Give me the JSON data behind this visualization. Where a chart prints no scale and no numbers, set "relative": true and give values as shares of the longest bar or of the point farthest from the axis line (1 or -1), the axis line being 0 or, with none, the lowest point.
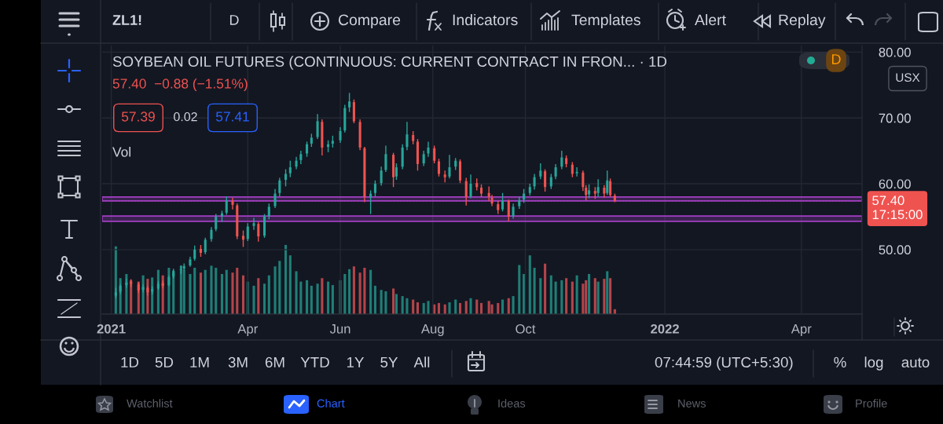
{
  "chart_data": [
    {
      "type": "candlestick",
      "title": "SOYBEAN OIL FUTURES (CONTINUOUS: CURRENT CONTRACT IN FRON... · 1D",
      "subtitle": "57.40  −0.88 (−1.51%)",
      "x": [
        "2021-01-04",
        "2021-01-07",
        "2021-01-11",
        "2021-01-14",
        "2021-01-19",
        "2021-01-22",
        "2021-01-25",
        "2021-01-28",
        "2021-02-01",
        "2021-02-04",
        "2021-02-08",
        "2021-02-11",
        "2021-02-16",
        "2021-02-18",
        "2021-02-22",
        "2021-02-25",
        "2021-03-01",
        "2021-03-04",
        "2021-03-08",
        "2021-03-11",
        "2021-03-15",
        "2021-03-18",
        "2021-03-22",
        "2021-03-25",
        "2021-03-29",
        "2021-04-01",
        "2021-04-05",
        "2021-04-08",
        "2021-04-12",
        "2021-04-15",
        "2021-04-19",
        "2021-04-22",
        "2021-04-26",
        "2021-04-29",
        "2021-05-03",
        "2021-05-06",
        "2021-05-10",
        "2021-05-13",
        "2021-05-17",
        "2021-05-20",
        "2021-05-24",
        "2021-05-27",
        "2021-06-01",
        "2021-06-04",
        "2021-06-07",
        "2021-06-10",
        "2021-06-14",
        "2021-06-17",
        "2021-06-21",
        "2021-06-24",
        "2021-06-28",
        "2021-07-01",
        "2021-07-06",
        "2021-07-08",
        "2021-07-12",
        "2021-07-15",
        "2021-07-19",
        "2021-07-22",
        "2021-07-26",
        "2021-07-29",
        "2021-08-02",
        "2021-08-05",
        "2021-08-09",
        "2021-08-12",
        "2021-08-16",
        "2021-08-19",
        "2021-08-23",
        "2021-08-26",
        "2021-08-30",
        "2021-09-02",
        "2021-09-07",
        "2021-09-09",
        "2021-09-13",
        "2021-09-16",
        "2021-09-20",
        "2021-09-23",
        "2021-09-27",
        "2021-09-30",
        "2021-10-04",
        "2021-10-07",
        "2021-10-11",
        "2021-10-14",
        "2021-10-18",
        "2021-10-21",
        "2021-10-25",
        "2021-10-28",
        "2021-11-01",
        "2021-11-04",
        "2021-11-08",
        "2021-11-10",
        "2021-11-12",
        "2021-11-16",
        "2021-11-18",
        "2021-11-22",
        "2021-11-24",
        "2021-11-26",
        "2021-11-29"
      ],
      "ohlc": [
        [
          43.0,
          44.2,
          42.6,
          43.5
        ],
        [
          43.6,
          44.8,
          43.2,
          44.5
        ],
        [
          44.6,
          45.6,
          44.2,
          45.0
        ],
        [
          45.1,
          45.5,
          44.3,
          44.8
        ],
        [
          44.7,
          45.0,
          43.4,
          43.8
        ],
        [
          43.9,
          44.7,
          43.5,
          44.3
        ],
        [
          44.2,
          44.5,
          43.0,
          43.5
        ],
        [
          43.6,
          44.4,
          43.2,
          44.0
        ],
        [
          44.1,
          45.2,
          43.9,
          44.8
        ],
        [
          44.9,
          45.3,
          44.1,
          44.5
        ],
        [
          44.6,
          46.1,
          44.4,
          45.8
        ],
        [
          45.9,
          47.1,
          45.6,
          46.8
        ],
        [
          46.9,
          47.6,
          46.3,
          47.0
        ],
        [
          47.1,
          47.9,
          46.8,
          47.5
        ],
        [
          47.6,
          48.9,
          47.4,
          48.5
        ],
        [
          48.6,
          50.6,
          48.3,
          50.0
        ],
        [
          50.1,
          50.7,
          48.9,
          49.5
        ],
        [
          49.6,
          51.8,
          49.3,
          51.5
        ],
        [
          51.6,
          53.4,
          51.2,
          53.0
        ],
        [
          53.1,
          55.4,
          52.8,
          55.0
        ],
        [
          55.1,
          55.9,
          54.2,
          55.5
        ],
        [
          55.6,
          58.1,
          55.3,
          57.5
        ],
        [
          57.4,
          57.9,
          56.1,
          56.8
        ],
        [
          56.7,
          57.0,
          51.6,
          52.0
        ],
        [
          52.1,
          52.9,
          50.4,
          51.5
        ],
        [
          51.6,
          54.0,
          51.3,
          53.5
        ],
        [
          53.6,
          54.8,
          53.0,
          54.0
        ],
        [
          53.9,
          54.2,
          51.2,
          52.0
        ],
        [
          52.1,
          55.4,
          51.8,
          55.0
        ],
        [
          55.1,
          57.0,
          54.6,
          56.5
        ],
        [
          56.6,
          59.2,
          56.3,
          58.5
        ],
        [
          58.6,
          60.9,
          58.1,
          60.5
        ],
        [
          60.6,
          62.2,
          59.6,
          61.5
        ],
        [
          61.6,
          63.5,
          61.0,
          62.5
        ],
        [
          62.6,
          64.1,
          62.2,
          63.5
        ],
        [
          63.6,
          65.0,
          63.0,
          64.5
        ],
        [
          64.6,
          66.4,
          64.1,
          66.0
        ],
        [
          66.1,
          67.6,
          65.6,
          67.0
        ],
        [
          67.1,
          70.6,
          66.8,
          69.5
        ],
        [
          69.4,
          69.8,
          64.3,
          65.5
        ],
        [
          65.6,
          66.6,
          64.8,
          66.0
        ],
        [
          66.1,
          67.3,
          65.5,
          66.5
        ],
        [
          66.6,
          68.6,
          66.2,
          68.0
        ],
        [
          68.1,
          72.0,
          67.8,
          71.5
        ],
        [
          71.6,
          73.8,
          70.9,
          72.5
        ],
        [
          72.4,
          72.8,
          69.2,
          69.5
        ],
        [
          69.4,
          69.8,
          65.1,
          65.5
        ],
        [
          65.4,
          65.6,
          57.2,
          58.0
        ],
        [
          57.9,
          59.0,
          55.4,
          58.5
        ],
        [
          58.6,
          60.5,
          58.1,
          60.0
        ],
        [
          60.1,
          62.6,
          59.7,
          62.0
        ],
        [
          62.1,
          65.8,
          61.8,
          64.5
        ],
        [
          64.4,
          64.7,
          59.5,
          61.0
        ],
        [
          61.1,
          63.1,
          60.6,
          62.5
        ],
        [
          62.6,
          66.0,
          62.2,
          65.5
        ],
        [
          65.6,
          69.4,
          65.1,
          67.5
        ],
        [
          67.4,
          68.0,
          66.0,
          66.5
        ],
        [
          66.4,
          66.8,
          62.0,
          63.0
        ],
        [
          63.1,
          65.0,
          62.7,
          64.5
        ],
        [
          64.6,
          66.4,
          64.1,
          65.5
        ],
        [
          65.4,
          65.8,
          63.1,
          63.5
        ],
        [
          63.4,
          63.8,
          61.1,
          61.5
        ],
        [
          61.4,
          62.0,
          60.2,
          61.0
        ],
        [
          61.1,
          64.4,
          60.8,
          62.5
        ],
        [
          62.6,
          63.9,
          62.1,
          63.5
        ],
        [
          63.4,
          63.7,
          60.1,
          60.5
        ],
        [
          60.4,
          60.9,
          56.7,
          58.0
        ],
        [
          58.1,
          61.4,
          57.8,
          60.0
        ],
        [
          60.1,
          60.8,
          59.0,
          59.5
        ],
        [
          59.4,
          59.9,
          58.0,
          58.5
        ],
        [
          58.6,
          59.6,
          57.4,
          58.0
        ],
        [
          57.9,
          58.3,
          56.6,
          57.0
        ],
        [
          56.9,
          57.4,
          55.4,
          56.0
        ],
        [
          56.1,
          58.6,
          55.8,
          57.5
        ],
        [
          57.4,
          57.6,
          54.3,
          55.0
        ],
        [
          55.1,
          57.0,
          54.7,
          56.5
        ],
        [
          56.6,
          58.0,
          56.2,
          57.5
        ],
        [
          57.6,
          59.2,
          57.1,
          58.5
        ],
        [
          58.6,
          60.0,
          58.2,
          59.5
        ],
        [
          59.6,
          61.5,
          59.1,
          61.0
        ],
        [
          61.1,
          63.1,
          60.7,
          62.0
        ],
        [
          61.9,
          62.2,
          58.8,
          59.5
        ],
        [
          59.6,
          61.5,
          59.2,
          61.0
        ],
        [
          61.1,
          63.0,
          60.7,
          62.5
        ],
        [
          62.6,
          65.0,
          62.2,
          64.0
        ],
        [
          63.9,
          64.3,
          62.5,
          63.0
        ],
        [
          62.9,
          63.3,
          61.0,
          61.5
        ],
        [
          61.6,
          62.5,
          61.1,
          61.8
        ],
        [
          61.7,
          62.0,
          58.9,
          59.5
        ],
        [
          59.4,
          59.8,
          57.5,
          58.3
        ],
        [
          58.4,
          59.9,
          57.8,
          59.0
        ],
        [
          58.9,
          59.5,
          57.7,
          58.5
        ],
        [
          58.6,
          60.7,
          58.0,
          59.5
        ],
        [
          59.4,
          59.8,
          57.9,
          58.5
        ],
        [
          58.6,
          62.0,
          58.3,
          60.5
        ],
        [
          60.4,
          60.8,
          58.0,
          58.28
        ],
        [
          58.2,
          58.5,
          57.2,
          57.4
        ]
      ],
      "colors": [
        "#26a69a",
        "#26a69a",
        "#26a69a",
        "#ef5350",
        "#ef5350",
        "#26a69a",
        "#ef5350",
        "#26a69a",
        "#26a69a",
        "#ef5350",
        "#26a69a",
        "#26a69a",
        "#26a69a",
        "#26a69a",
        "#26a69a",
        "#26a69a",
        "#ef5350",
        "#26a69a",
        "#26a69a",
        "#26a69a",
        "#26a69a",
        "#26a69a",
        "#ef5350",
        "#ef5350",
        "#ef5350",
        "#26a69a",
        "#26a69a",
        "#ef5350",
        "#26a69a",
        "#26a69a",
        "#26a69a",
        "#26a69a",
        "#26a69a",
        "#26a69a",
        "#26a69a",
        "#26a69a",
        "#26a69a",
        "#26a69a",
        "#26a69a",
        "#ef5350",
        "#26a69a",
        "#26a69a",
        "#26a69a",
        "#26a69a",
        "#26a69a",
        "#ef5350",
        "#ef5350",
        "#ef5350",
        "#26a69a",
        "#26a69a",
        "#26a69a",
        "#26a69a",
        "#ef5350",
        "#26a69a",
        "#26a69a",
        "#26a69a",
        "#ef5350",
        "#ef5350",
        "#26a69a",
        "#26a69a",
        "#ef5350",
        "#ef5350",
        "#ef5350",
        "#26a69a",
        "#26a69a",
        "#ef5350",
        "#ef5350",
        "#26a69a",
        "#ef5350",
        "#ef5350",
        "#ef5350",
        "#ef5350",
        "#ef5350",
        "#26a69a",
        "#ef5350",
        "#26a69a",
        "#26a69a",
        "#26a69a",
        "#26a69a",
        "#26a69a",
        "#26a69a",
        "#ef5350",
        "#26a69a",
        "#26a69a",
        "#26a69a",
        "#ef5350",
        "#ef5350",
        "#26a69a",
        "#ef5350",
        "#ef5350",
        "#26a69a",
        "#ef5350",
        "#26a69a",
        "#ef5350",
        "#26a69a",
        "#ef5350",
        "#ef5350"
      ],
      "xlim": [
        "2020-12-26",
        "2022-05-11"
      ],
      "ylim": [
        40.2,
        81
      ],
      "xticks": [
        {
          "value": "2021-01-01",
          "label": "2021"
        },
        {
          "value": "2021-04-01",
          "label": "Apr"
        },
        {
          "value": "2021-06-01",
          "label": "Jun"
        },
        {
          "value": "2021-08-01",
          "label": "Aug"
        },
        {
          "value": "2021-10-01",
          "label": "Oct"
        },
        {
          "value": "2022-01-01",
          "label": "2022"
        },
        {
          "value": "2022-04-01",
          "label": "Apr"
        }
      ],
      "yticks": [
        {
          "value": 50,
          "label": "50.00"
        },
        {
          "value": 60,
          "label": "60.00"
        },
        {
          "value": 70,
          "label": "70.00"
        },
        {
          "value": 80,
          "label": "80.00"
        }
      ],
      "grid": true,
      "ref_lines": [
        {
          "axis": "y",
          "value": 57.4,
          "label": "57.40\n17:15:00",
          "color": "#ef5350",
          "line_style": "dotted"
        }
      ],
      "bands": [
        {
          "axis": "y",
          "from": 54.3,
          "to": 55.1,
          "color": "#a33fc4"
        },
        {
          "axis": "y",
          "from": 57.4,
          "to": 58.0,
          "color": "#a33fc4"
        }
      ],
      "annotations": [
        "57.39",
        "0.02",
        "57.41",
        "USX",
        "D",
        "ZL1!",
        "D",
        "Compare",
        "Indicators",
        "Templates",
        "Alert",
        "Replay",
        "1D",
        "5D",
        "1M",
        "3M",
        "6M",
        "YTD",
        "1Y",
        "5Y",
        "All",
        "07:44:59 (UTC+5:30)",
        "%",
        "log",
        "auto",
        "Watchlist",
        "Chart",
        "Ideas",
        "News",
        "Profile"
      ]
    },
    {
      "type": "bar",
      "relative": true,
      "xlim": [
        "2020-12-26",
        "2022-05-11"
      ],
      "x": [
        "2021-01-04",
        "2021-01-07",
        "2021-01-11",
        "2021-01-14",
        "2021-01-19",
        "2021-01-22",
        "2021-01-25",
        "2021-01-28",
        "2021-02-01",
        "2021-02-04",
        "2021-02-08",
        "2021-02-11",
        "2021-02-16",
        "2021-02-18",
        "2021-02-22",
        "2021-02-25",
        "2021-03-01",
        "2021-03-04",
        "2021-03-08",
        "2021-03-11",
        "2021-03-15",
        "2021-03-18",
        "2021-03-22",
        "2021-03-25",
        "2021-03-29",
        "2021-04-01",
        "2021-04-05",
        "2021-04-08",
        "2021-04-12",
        "2021-04-15",
        "2021-04-19",
        "2021-04-22",
        "2021-04-26",
        "2021-04-29",
        "2021-05-03",
        "2021-05-06",
        "2021-05-10",
        "2021-05-13",
        "2021-05-17",
        "2021-05-20",
        "2021-05-24",
        "2021-05-27",
        "2021-06-01",
        "2021-06-04",
        "2021-06-07",
        "2021-06-10",
        "2021-06-14",
        "2021-06-17",
        "2021-06-21",
        "2021-06-24",
        "2021-06-28",
        "2021-07-01",
        "2021-07-06",
        "2021-07-08",
        "2021-07-12",
        "2021-07-15",
        "2021-07-19",
        "2021-07-22",
        "2021-07-26",
        "2021-07-29",
        "2021-08-02",
        "2021-08-05",
        "2021-08-09",
        "2021-08-12",
        "2021-08-16",
        "2021-08-19",
        "2021-08-23",
        "2021-08-26",
        "2021-08-30",
        "2021-09-02",
        "2021-09-07",
        "2021-09-09",
        "2021-09-13",
        "2021-09-16",
        "2021-09-20",
        "2021-09-23",
        "2021-09-27",
        "2021-09-30",
        "2021-10-04",
        "2021-10-07",
        "2021-10-11",
        "2021-10-14",
        "2021-10-18",
        "2021-10-21",
        "2021-10-25",
        "2021-10-28",
        "2021-11-01",
        "2021-11-04",
        "2021-11-08",
        "2021-11-10",
        "2021-11-12",
        "2021-11-16",
        "2021-11-18",
        "2021-11-22",
        "2021-11-24",
        "2021-11-26",
        "2021-11-29"
      ],
      "values": [
        0.98,
        0.52,
        0.58,
        0.49,
        0.47,
        0.56,
        0.51,
        0.53,
        0.64,
        0.56,
        0.67,
        0.6,
        0.7,
        0.64,
        0.58,
        0.67,
        0.6,
        0.64,
        0.7,
        0.67,
        0.58,
        0.64,
        0.6,
        0.67,
        0.56,
        0.47,
        0.41,
        0.52,
        0.44,
        0.56,
        0.69,
        0.77,
        1,
        0.85,
        0.62,
        0.47,
        0.49,
        0.41,
        0.44,
        0.52,
        0.47,
        0.42,
        0.49,
        0.58,
        0.65,
        0.69,
        0.6,
        0.67,
        0.64,
        0.41,
        0.35,
        0.33,
        0.37,
        0.29,
        0.26,
        0.23,
        0.21,
        0.17,
        0.16,
        0.19,
        0.14,
        0.16,
        0.14,
        0.17,
        0.21,
        0.16,
        0.19,
        0.23,
        0.21,
        0.16,
        0.19,
        0.14,
        0.16,
        0.21,
        0.23,
        0.26,
        0.71,
        0.58,
        0.85,
        0.67,
        0.52,
        0.73,
        0.56,
        0.47,
        0.49,
        0.52,
        0.47,
        0.56,
        0.44,
        0.49,
        0.58,
        0.52,
        0.47,
        0.51,
        0.62,
        0.52,
        0.07
      ],
      "colors": [
        "#1f7f77",
        "#1f7f77",
        "#1f7f77",
        "#b3454a",
        "#b3454a",
        "#1f7f77",
        "#b3454a",
        "#1f7f77",
        "#1f7f77",
        "#b3454a",
        "#1f7f77",
        "#1f7f77",
        "#1f7f77",
        "#1f7f77",
        "#1f7f77",
        "#1f7f77",
        "#b3454a",
        "#1f7f77",
        "#1f7f77",
        "#1f7f77",
        "#1f7f77",
        "#1f7f77",
        "#b3454a",
        "#b3454a",
        "#b3454a",
        "#1f7f77",
        "#1f7f77",
        "#b3454a",
        "#1f7f77",
        "#1f7f77",
        "#1f7f77",
        "#1f7f77",
        "#1f7f77",
        "#1f7f77",
        "#1f7f77",
        "#1f7f77",
        "#1f7f77",
        "#1f7f77",
        "#1f7f77",
        "#b3454a",
        "#1f7f77",
        "#1f7f77",
        "#1f7f77",
        "#1f7f77",
        "#1f7f77",
        "#b3454a",
        "#b3454a",
        "#b3454a",
        "#1f7f77",
        "#1f7f77",
        "#1f7f77",
        "#1f7f77",
        "#b3454a",
        "#1f7f77",
        "#1f7f77",
        "#1f7f77",
        "#b3454a",
        "#b3454a",
        "#1f7f77",
        "#1f7f77",
        "#b3454a",
        "#b3454a",
        "#b3454a",
        "#1f7f77",
        "#1f7f77",
        "#b3454a",
        "#b3454a",
        "#1f7f77",
        "#b3454a",
        "#b3454a",
        "#b3454a",
        "#b3454a",
        "#b3454a",
        "#1f7f77",
        "#b3454a",
        "#1f7f77",
        "#1f7f77",
        "#1f7f77",
        "#1f7f77",
        "#1f7f77",
        "#1f7f77",
        "#b3454a",
        "#1f7f77",
        "#1f7f77",
        "#1f7f77",
        "#b3454a",
        "#b3454a",
        "#1f7f77",
        "#b3454a",
        "#b3454a",
        "#1f7f77",
        "#b3454a",
        "#1f7f77",
        "#b3454a",
        "#1f7f77",
        "#b3454a",
        "#b3454a"
      ],
      "annotations": [
        "Vol"
      ]
    }
  ]
}
